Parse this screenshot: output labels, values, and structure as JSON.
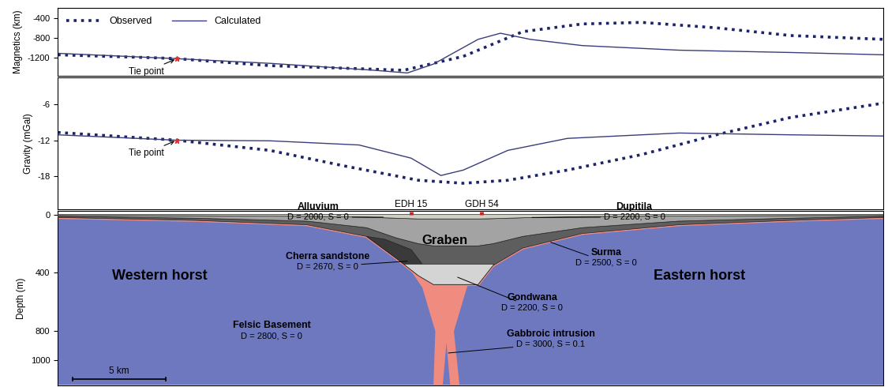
{
  "chart_data": [
    {
      "type": "line",
      "y_label": "Magnetics (km)",
      "xlim": [
        0,
        44.4
      ],
      "ylim": [
        -1550,
        -200
      ],
      "yticks": [
        -400,
        -800,
        -1200
      ],
      "tick_labels": "y",
      "legend": "upper left",
      "series": [
        {
          "name": "Observed",
          "color": "#1c2468",
          "line_style": "dotted",
          "x": [
            0,
            5.4,
            6.4,
            11.4,
            18.6,
            21.8,
            25,
            28.2,
            31.4,
            35.4,
            39.4,
            44.4
          ],
          "values": [
            -1138,
            -1200,
            -1215,
            -1354,
            -1446,
            -1170,
            -677,
            -523,
            -492,
            -600,
            -754,
            -830
          ]
        },
        {
          "name": "Calculated",
          "color": "#3a3d78",
          "line_style": "solid",
          "x": [
            0,
            6.4,
            11.4,
            17,
            18.8,
            20.2,
            22.6,
            23.8,
            25.4,
            28.2,
            33.4,
            39.4,
            44.4
          ],
          "values": [
            -1108,
            -1215,
            -1308,
            -1446,
            -1500,
            -1323,
            -830,
            -708,
            -830,
            -954,
            -1046,
            -1092,
            -1138
          ]
        }
      ],
      "annotations": [
        {
          "text": "Tie point",
          "x": 6.4
        }
      ]
    },
    {
      "type": "line",
      "y_label": "Gravity (mGal)",
      "xlim": [
        0,
        44.4
      ],
      "ylim": [
        -23.5,
        -1.5
      ],
      "yticks": [
        -6,
        -12,
        -18
      ],
      "tick_labels": "y",
      "series": [
        {
          "name": "Observed",
          "color": "#1c2468",
          "line_style": "dotted",
          "x": [
            0,
            6.4,
            11.4,
            15.4,
            19.4,
            21.8,
            24.2,
            27.4,
            31.4,
            35.4,
            39.4,
            44.4
          ],
          "values": [
            -10.7,
            -12,
            -13.7,
            -16.3,
            -18.7,
            -19.2,
            -18.7,
            -17,
            -14.4,
            -11.1,
            -8.2,
            -5.8
          ]
        },
        {
          "name": "Calculated",
          "color": "#3a3d78",
          "line_style": "solid",
          "x": [
            0,
            6.4,
            11.4,
            16.2,
            19,
            20.6,
            21.8,
            24.2,
            27.4,
            33.4,
            39.4,
            44.4
          ],
          "values": [
            -11.1,
            -12,
            -12.1,
            -12.8,
            -15,
            -17.9,
            -17,
            -13.7,
            -11.7,
            -10.8,
            -11.1,
            -11.3
          ]
        }
      ],
      "annotations": [
        {
          "text": "Tie point",
          "x": 6.4
        }
      ]
    },
    {
      "type": "cross_section",
      "y_label": "Depth (m)",
      "xlim": [
        0,
        44.4
      ],
      "ylim": [
        1170,
        -25
      ],
      "yticks": [
        0,
        400,
        800,
        1000
      ],
      "tick_labels": "y",
      "units": [
        {
          "name": "Felsic Basement",
          "properties": "D = 2800, S = 0",
          "color": "#6e78bf",
          "x": [
            0,
            7.4,
            13.4,
            16.6,
            18.2,
            19.4,
            20.2,
            22.6,
            23.4,
            25,
            28.2,
            33.4,
            39.4,
            44.4,
            44.4,
            0
          ],
          "depth": [
            20,
            40,
            70,
            150,
            300,
            420,
            480,
            480,
            350,
            230,
            130,
            70,
            40,
            20,
            1170,
            1170
          ]
        },
        {
          "name": "Gabbroic intrusion",
          "properties": "D = 3000, S = 0.1",
          "color": "#f08b80",
          "x": [
            18.0,
            23.6,
            22.0,
            21.3,
            21.6,
            21.1,
            20.9,
            20.7,
            20.2,
            20.3,
            19.6
          ],
          "depth": [
            200,
            200,
            500,
            800,
            1170,
            1170,
            880,
            1170,
            1170,
            800,
            500
          ]
        },
        {
          "name": "Surma",
          "properties": "D = 2500, S = 0",
          "color": "#5e5e5e",
          "x": [
            0,
            7.4,
            13.4,
            16.6,
            18.2,
            19.4,
            20.2,
            22.6,
            23.4,
            25,
            28.2,
            33.4,
            39.4,
            44.4,
            44.4,
            39.4,
            33.4,
            28.2,
            25,
            23.4,
            22.6,
            20.2,
            19.4,
            18.2,
            16.6,
            13.4,
            7.4,
            0
          ],
          "depth": [
            12,
            25,
            45,
            90,
            160,
            200,
            215,
            215,
            200,
            150,
            90,
            45,
            25,
            12,
            20,
            40,
            70,
            130,
            230,
            350,
            480,
            480,
            420,
            300,
            150,
            70,
            40,
            20
          ]
        },
        {
          "name": "Dupitila",
          "properties": "D = 2200, S = 0",
          "color": "#a3a3a3",
          "x": [
            0,
            7.4,
            13.4,
            16.6,
            18.2,
            19.4,
            20.2,
            22.6,
            23.4,
            25,
            28.2,
            33.4,
            39.4,
            44.4,
            44.4,
            39.4,
            33.4,
            28.2,
            25,
            23.4,
            22.6,
            20.2,
            19.4,
            18.2,
            16.6,
            13.4,
            7.4,
            0
          ],
          "depth": [
            6,
            8,
            12,
            18,
            25,
            30,
            30,
            30,
            28,
            22,
            14,
            10,
            7,
            6,
            12,
            25,
            45,
            90,
            150,
            200,
            215,
            215,
            200,
            160,
            90,
            45,
            25,
            12
          ]
        },
        {
          "name": "Alluvium",
          "properties": "D = 2000, S = 0",
          "color": "#cfcfc4",
          "x": [
            0,
            7.4,
            13.4,
            16.6,
            18.2,
            19.4,
            20.2,
            22.6,
            23.4,
            25,
            28.2,
            33.4,
            39.4,
            44.4,
            44.4,
            39.4,
            33.4,
            28.2,
            25,
            23.4,
            22.6,
            20.2,
            19.4,
            18.2,
            16.6,
            13.4,
            7.4,
            0
          ],
          "depth": [
            0,
            0,
            0,
            0,
            0,
            0,
            0,
            0,
            0,
            0,
            0,
            0,
            0,
            0,
            6,
            7,
            10,
            14,
            22,
            28,
            30,
            30,
            30,
            25,
            18,
            12,
            8,
            6
          ]
        },
        {
          "name": "Cherra sandstone",
          "properties": "D = 2670, S = 0",
          "color": "#3a3a3a",
          "x": [
            16.6,
            18.2,
            18.6,
            19.6,
            19.0,
            17.6
          ],
          "depth": [
            150,
            300,
            340,
            340,
            240,
            170
          ]
        },
        {
          "name": "Gondwana",
          "properties": "D = 2200, S = 0",
          "color": "#d4d4d4",
          "x": [
            18.6,
            23.45,
            23.4,
            22.6,
            20.2,
            19.4
          ],
          "depth": [
            340,
            340,
            350,
            480,
            480,
            420
          ]
        }
      ],
      "texts": [
        "Western horst",
        "Eastern horst",
        "Graben"
      ],
      "boreholes": [
        {
          "name": "EDH 15",
          "x": 19.0
        },
        {
          "name": "GDH 54",
          "x": 22.8
        }
      ],
      "scale_bar": {
        "length": 5,
        "label": "5 km"
      }
    }
  ]
}
